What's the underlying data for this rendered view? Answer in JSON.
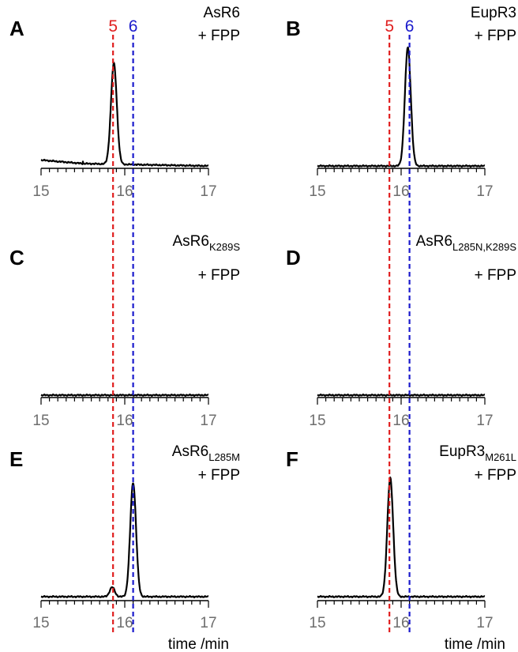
{
  "chart_data": [
    {
      "panel": "A",
      "type": "line",
      "title": "AsR6",
      "title_sub": "",
      "title_line2": "+ FPP",
      "xlim": [
        15,
        17
      ],
      "xticks": [
        "15",
        "16",
        "17"
      ],
      "xlabel": "",
      "baseline_noise": [
        [
          15.0,
          0.05
        ],
        [
          15.5,
          0.02
        ],
        [
          17.0,
          0.0
        ]
      ],
      "peaks": [
        {
          "rt": 15.87,
          "height": 0.85,
          "width": 0.035
        }
      ]
    },
    {
      "panel": "B",
      "type": "line",
      "title": "EupR3",
      "title_sub": "",
      "title_line2": "+ FPP",
      "xlim": [
        15,
        17
      ],
      "xticks": [
        "15",
        "16",
        "17"
      ],
      "xlabel": "",
      "baseline_noise": [
        [
          15.0,
          0.0
        ],
        [
          17.0,
          0.0
        ]
      ],
      "peaks": [
        {
          "rt": 16.08,
          "height": 1.0,
          "width": 0.035
        }
      ]
    },
    {
      "panel": "C",
      "type": "line",
      "title": "AsR6",
      "title_sub": "K289S",
      "title_line2": "+ FPP",
      "xlim": [
        15,
        17
      ],
      "xticks": [
        "15",
        "16",
        "17"
      ],
      "xlabel": "",
      "baseline_noise": [
        [
          15.0,
          0.0
        ],
        [
          17.0,
          0.0
        ]
      ],
      "peaks": []
    },
    {
      "panel": "D",
      "type": "line",
      "title": "AsR6",
      "title_sub": "L285N,K289S",
      "title_line2": "+ FPP",
      "xlim": [
        15,
        17
      ],
      "xticks": [
        "15",
        "16",
        "17"
      ],
      "xlabel": "",
      "baseline_noise": [
        [
          15.0,
          0.0
        ],
        [
          17.0,
          0.0
        ]
      ],
      "peaks": []
    },
    {
      "panel": "E",
      "type": "line",
      "title": "AsR6",
      "title_sub": "L285M",
      "title_line2": "+ FPP",
      "xlim": [
        15,
        17
      ],
      "xticks": [
        "15",
        "16",
        "17"
      ],
      "xlabel": "time /min",
      "baseline_noise": [
        [
          15.0,
          0.0
        ],
        [
          17.0,
          0.0
        ]
      ],
      "peaks": [
        {
          "rt": 15.85,
          "height": 0.06,
          "width": 0.03
        },
        {
          "rt": 16.1,
          "height": 0.72,
          "width": 0.035
        }
      ]
    },
    {
      "panel": "F",
      "type": "line",
      "title": "EupR3",
      "title_sub": "M261L",
      "title_line2": "+ FPP",
      "xlim": [
        15,
        17
      ],
      "xticks": [
        "15",
        "16",
        "17"
      ],
      "xlabel": "time /min",
      "baseline_noise": [
        [
          15.0,
          0.0
        ],
        [
          17.0,
          0.0
        ]
      ],
      "peaks": [
        {
          "rt": 15.87,
          "height": 0.75,
          "width": 0.035
        }
      ]
    }
  ],
  "markers": [
    {
      "label": "5",
      "rt": 15.86,
      "color": "#e02020"
    },
    {
      "label": "6",
      "rt": 16.1,
      "color": "#1a1acc"
    }
  ],
  "colors": {
    "trace": "#000000",
    "axis": "#000000",
    "tick_label": "#6e6e6e"
  }
}
